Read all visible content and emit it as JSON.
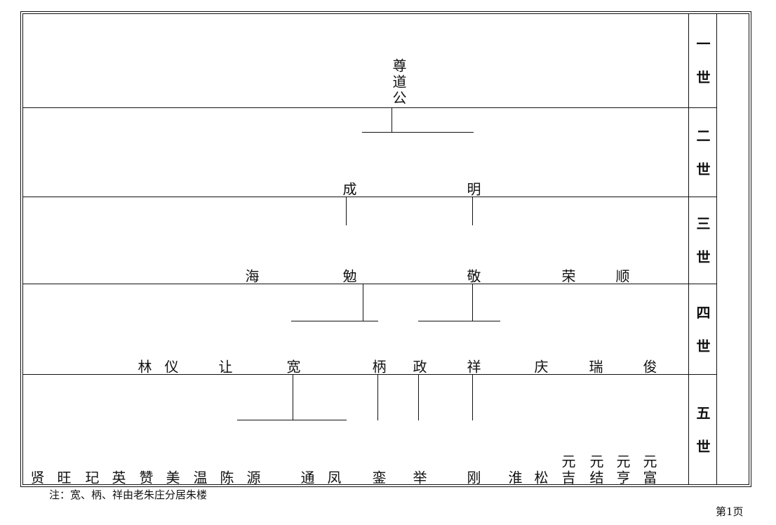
{
  "generations": [
    {
      "label": "一世",
      "names": [
        "尊道公"
      ]
    },
    {
      "label": "二世",
      "names": [
        "成",
        "明"
      ]
    },
    {
      "label": "三世",
      "names": [
        "海",
        "勉",
        "敬",
        "荣",
        "顺"
      ]
    },
    {
      "label": "四世",
      "names": [
        "林",
        "仪",
        "让",
        "宽",
        "柄",
        "政",
        "祥",
        "庆",
        "瑞",
        "俊"
      ]
    },
    {
      "label": "五世",
      "names": [
        "贤",
        "旺",
        "玘",
        "英",
        "赞",
        "美",
        "温",
        "陈",
        "源",
        "通",
        "凤",
        "銮",
        "举",
        "刚",
        "淮",
        "松",
        "元吉",
        "元结",
        "元亨",
        "元富"
      ]
    }
  ],
  "note": "注：宽、柄、祥由老朱庄分居朱楼",
  "footer": "第1页"
}
